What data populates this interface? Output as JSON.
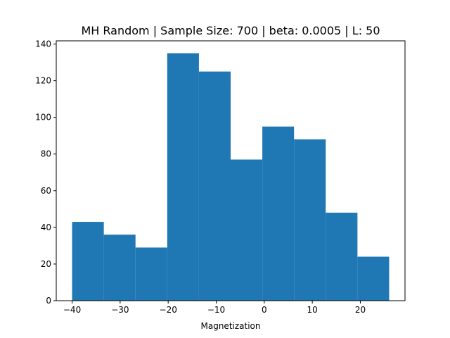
{
  "chart_data": {
    "type": "bar",
    "title": "MH Random | Sample Size: 700 | beta: 0.0005 | L: 50",
    "xlabel": "Magnetization",
    "ylabel": "",
    "bin_edges": [
      -40,
      -33.4,
      -26.8,
      -20.2,
      -13.6,
      -7,
      -0.4,
      6.2,
      12.8,
      19.4,
      26
    ],
    "values": [
      43,
      36,
      29,
      135,
      125,
      77,
      95,
      88,
      48,
      24
    ],
    "xlim": [
      -43.3,
      29.3
    ],
    "ylim": [
      0,
      141.75
    ],
    "xticks": [
      -40,
      -30,
      -20,
      -10,
      0,
      10,
      20
    ],
    "xtick_labels": [
      "−40",
      "−30",
      "−20",
      "−10",
      "0",
      "10",
      "20"
    ],
    "yticks": [
      0,
      20,
      40,
      60,
      80,
      100,
      120,
      140
    ],
    "ytick_labels": [
      "0",
      "20",
      "40",
      "60",
      "80",
      "100",
      "120",
      "140"
    ],
    "color": "#1f77b4",
    "grid": false
  }
}
